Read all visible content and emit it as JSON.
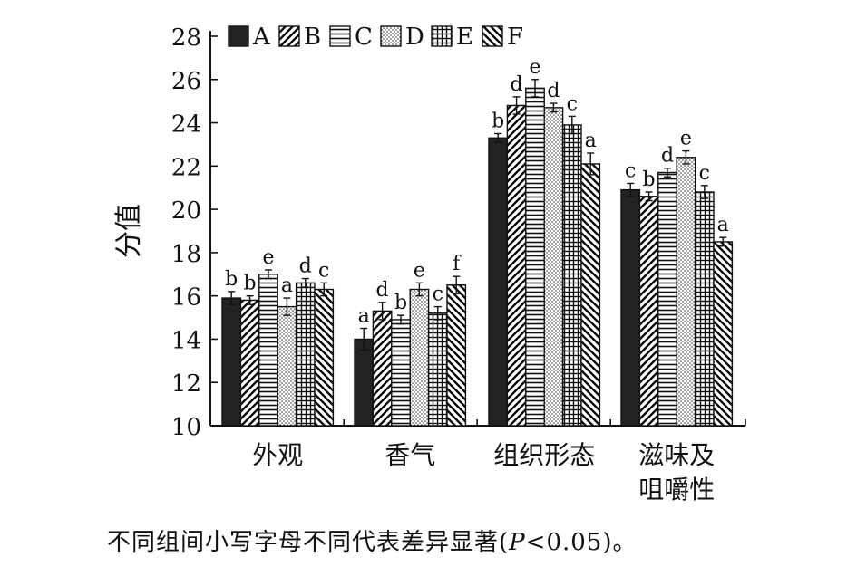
{
  "chart_data": {
    "type": "bar",
    "ylabel": "分值",
    "ylim": [
      10,
      28
    ],
    "yticks": [
      10,
      12,
      14,
      16,
      18,
      20,
      22,
      24,
      26,
      28
    ],
    "categories": [
      {
        "lines": [
          "外观"
        ]
      },
      {
        "lines": [
          "香气"
        ]
      },
      {
        "lines": [
          "组织形态"
        ]
      },
      {
        "lines": [
          "滋味及",
          "咀嚼性"
        ]
      }
    ],
    "legend_position": "top",
    "series": [
      {
        "name": "A",
        "pattern": "solid",
        "values": [
          15.9,
          14.0,
          23.3,
          20.9
        ],
        "errors": [
          0.3,
          0.5,
          0.2,
          0.3
        ],
        "labels": [
          "b",
          "a",
          "b",
          "c"
        ]
      },
      {
        "name": "B",
        "pattern": "diagonal",
        "values": [
          15.8,
          15.3,
          24.8,
          20.6
        ],
        "errors": [
          0.2,
          0.4,
          0.4,
          0.2
        ],
        "labels": [
          "b",
          "d",
          "d",
          "b"
        ]
      },
      {
        "name": "C",
        "pattern": "horizontal",
        "values": [
          17.0,
          14.9,
          25.6,
          21.7
        ],
        "errors": [
          0.2,
          0.2,
          0.4,
          0.2
        ],
        "labels": [
          "e",
          "b",
          "e",
          "d"
        ]
      },
      {
        "name": "D",
        "pattern": "dots",
        "values": [
          15.5,
          16.3,
          24.7,
          22.4
        ],
        "errors": [
          0.4,
          0.3,
          0.2,
          0.3
        ],
        "labels": [
          "a",
          "e",
          "d",
          "e"
        ]
      },
      {
        "name": "E",
        "pattern": "grid",
        "values": [
          16.6,
          15.2,
          23.9,
          20.8
        ],
        "errors": [
          0.2,
          0.3,
          0.4,
          0.3
        ],
        "labels": [
          "d",
          "c",
          "c",
          "c"
        ]
      },
      {
        "name": "F",
        "pattern": "diagonal2",
        "values": [
          16.3,
          16.5,
          22.1,
          18.5
        ],
        "errors": [
          0.3,
          0.4,
          0.5,
          0.2
        ],
        "labels": [
          "c",
          "f",
          "a",
          "a"
        ]
      }
    ]
  },
  "caption": {
    "before": "不同组间小写字母不同代表差异显著(",
    "p_var": "P",
    "after": "<0.05)。"
  }
}
